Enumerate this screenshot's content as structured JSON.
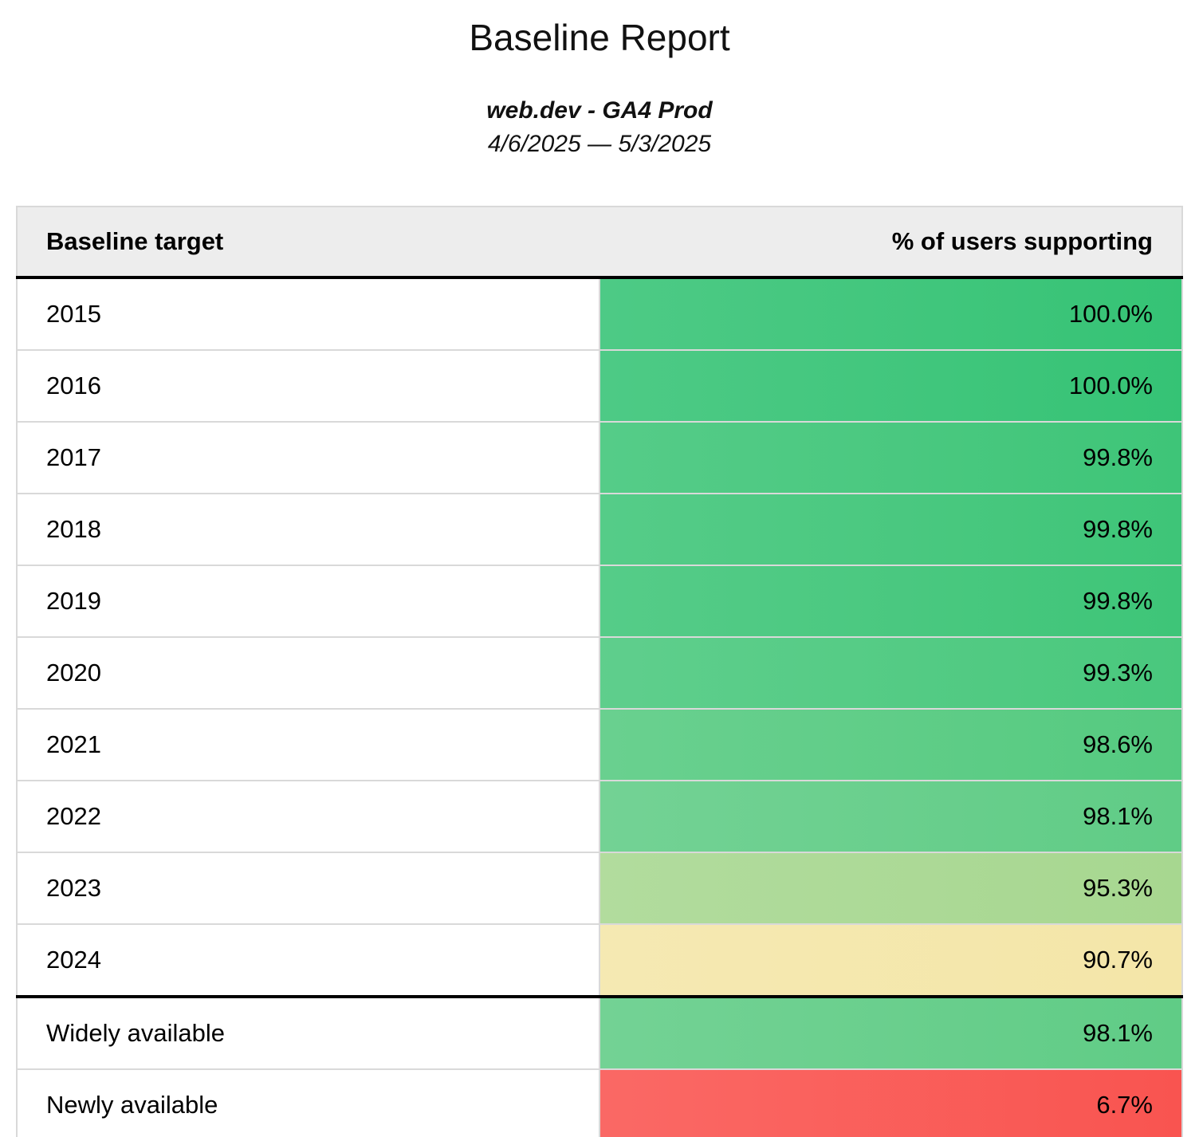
{
  "report": {
    "title": "Baseline Report",
    "property": "web.dev - GA4 Prod",
    "date_range": "4/6/2025 — 5/3/2025",
    "table": {
      "columns": [
        "Baseline target",
        "% of users supporting"
      ],
      "year_rows": [
        {
          "label": "2015",
          "value": "100.0%",
          "color": "#35C375"
        },
        {
          "label": "2016",
          "value": "100.0%",
          "color": "#35C375"
        },
        {
          "label": "2017",
          "value": "99.8%",
          "color": "#3EC578"
        },
        {
          "label": "2018",
          "value": "99.8%",
          "color": "#3EC578"
        },
        {
          "label": "2019",
          "value": "99.8%",
          "color": "#3EC578"
        },
        {
          "label": "2020",
          "value": "99.3%",
          "color": "#49C87D"
        },
        {
          "label": "2021",
          "value": "98.6%",
          "color": "#55CA80"
        },
        {
          "label": "2022",
          "value": "98.1%",
          "color": "#60CC86"
        },
        {
          "label": "2023",
          "value": "95.3%",
          "color": "#A7D790"
        },
        {
          "label": "2024",
          "value": "90.7%",
          "color": "#F4E6A8"
        }
      ],
      "availability_rows": [
        {
          "label": "Widely available",
          "value": "98.1%",
          "color": "#60CC86"
        },
        {
          "label": "Newly available",
          "value": "6.7%",
          "color": "#F95450"
        }
      ]
    },
    "colors": {
      "header_bg": "#EDEDED",
      "grid_border": "#D9D9D9",
      "section_border": "#000000",
      "text": "#000000"
    }
  },
  "chart_data": {
    "type": "table",
    "title": "Baseline Report",
    "subtitle": "web.dev - GA4 Prod",
    "date_range": "4/6/2025 — 5/3/2025",
    "columns": [
      "Baseline target",
      "% of users supporting"
    ],
    "rows": [
      [
        "2015",
        100.0
      ],
      [
        "2016",
        100.0
      ],
      [
        "2017",
        99.8
      ],
      [
        "2018",
        99.8
      ],
      [
        "2019",
        99.8
      ],
      [
        "2020",
        99.3
      ],
      [
        "2021",
        98.6
      ],
      [
        "2022",
        98.1
      ],
      [
        "2023",
        95.3
      ],
      [
        "2024",
        90.7
      ],
      [
        "Widely available",
        98.1
      ],
      [
        "Newly available",
        6.7
      ]
    ],
    "value_unit": "%",
    "layout_hints": {
      "value_color_scale": "heatmap: high=green, mid=yellow, low=red",
      "section_break_after_row": "2024"
    }
  }
}
